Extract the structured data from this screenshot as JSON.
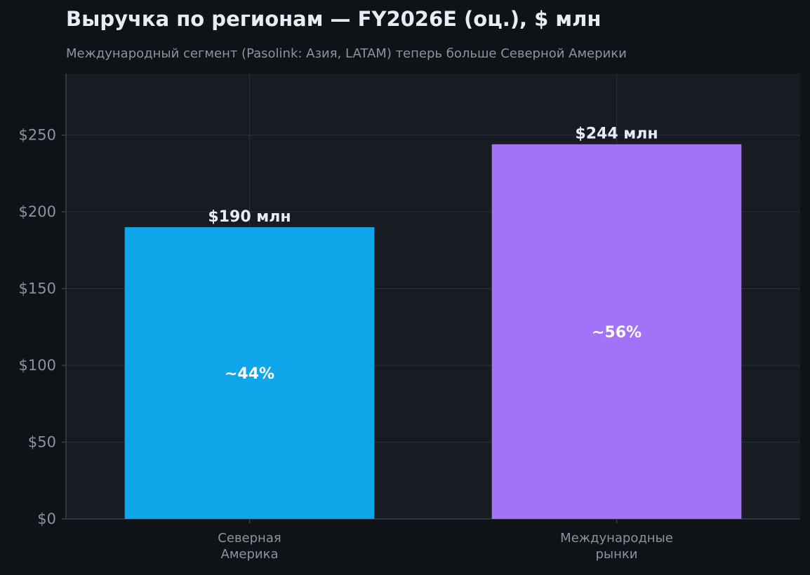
{
  "chart_data": {
    "type": "bar",
    "title": "Выручка по регионам — FY2026E (оц.), $ млн",
    "subtitle": "Международный сегмент (Pasolink: Азия, LATAM) теперь больше Северной Америки",
    "categories": [
      [
        "Северная",
        "Америка"
      ],
      [
        "Международные",
        "рынки"
      ]
    ],
    "values": [
      190,
      244
    ],
    "value_labels": [
      "$190 млн",
      "$244 млн"
    ],
    "share_labels": [
      "~44%",
      "~56%"
    ],
    "bar_colors": [
      "#0ea5e9",
      "#a273f8"
    ],
    "ylim": [
      0,
      290
    ],
    "yticks": [
      0,
      50,
      100,
      150,
      200,
      250
    ],
    "ytick_labels": [
      "$0",
      "$50",
      "$100",
      "$150",
      "$200",
      "$250"
    ],
    "grid": true,
    "legend": "none"
  },
  "colors": {
    "background": "#0f1317",
    "plot_background": "#181b22",
    "grid": "#2a2f38",
    "axis": "#3a3f48",
    "text": "#e6edf3",
    "muted_text": "#8b949e"
  }
}
